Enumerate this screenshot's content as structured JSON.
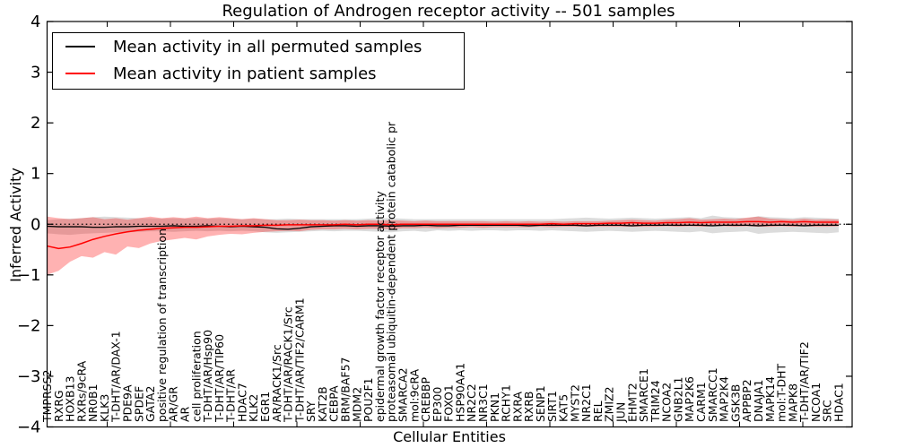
{
  "title": "Regulation of Androgen receptor activity -- 501 samples",
  "legend": {
    "items": [
      {
        "label": "Mean activity in all permuted samples",
        "color": "#000000"
      },
      {
        "label": "Mean activity in patient samples",
        "color": "#ff0000"
      }
    ],
    "position": "upper left"
  },
  "chart_data": {
    "type": "line",
    "title": "Regulation of Androgen receptor activity -- 501 samples",
    "xlabel": "Cellular Entities",
    "ylabel": "Inferred Activity",
    "ylim": [
      -4,
      4
    ],
    "yticks": [
      4,
      3,
      2,
      1,
      0,
      -1,
      -2,
      -3,
      -4
    ],
    "grid": false,
    "zero_line": true,
    "legend_position": "upper left",
    "colors": {
      "permuted_line": "#000000",
      "patient_line": "#ff0000",
      "permuted_band": "rgba(128,128,128,0.28)",
      "patient_band": "rgba(255,0,0,0.30)"
    },
    "categories": [
      "TMPRSS2",
      "RXRG",
      "HOXB13",
      "RXRs/9cRA",
      "NR0B1",
      "KLK3",
      "T-DHT/AR/DAX-1",
      "PDE9A",
      "SPDEF",
      "GATA2",
      "positive regulation of transcription",
      "AR/GR",
      "AR",
      "cell proliferation",
      "T-DHT/AR/Hsp90",
      "T-DHT/AR/TIP60",
      "T-DHT/AR",
      "HDAC7",
      "KLK2",
      "EGR1",
      "AR/RACK1/Src",
      "T-DHT/AR/RACK1/Src",
      "T-DHT/AR/TIF2/CARM1",
      "SRY",
      "KAT2B",
      "CEBPA",
      "BRM/BAF57",
      "MDM2",
      "POU2F1",
      "epidermal growth factor receptor activity",
      "proteasomal ubiquitin-dependent protein catabolic pr",
      "SMARCA2",
      "mol:9cRA",
      "CREBBP",
      "EP300",
      "FOXO1",
      "HSP90AA1",
      "NR2C2",
      "NR3C1",
      "PKN1",
      "RCHY1",
      "RXRA",
      "RXRB",
      "SENP1",
      "SIRT1",
      "KAT5",
      "MYST2",
      "NR2C1",
      "REL",
      "ZMIZ2",
      "JUN",
      "EHMT2",
      "SMARCE1",
      "TRIM24",
      "NCOA2",
      "GNB2L1",
      "MAP2K6",
      "CARM1",
      "SMARCC1",
      "MAP2K4",
      "GSK3B",
      "APPBP2",
      "DNAJA1",
      "MAPK14",
      "mol:T-DHT",
      "MAPK8",
      "T-DHT/AR/TIF2",
      "NCOA1",
      "SRC",
      "HDAC1"
    ],
    "series": [
      {
        "name": "Mean activity in all permuted samples",
        "color": "#000000",
        "values": [
          -0.04,
          -0.05,
          -0.05,
          -0.05,
          -0.06,
          -0.06,
          -0.05,
          -0.05,
          -0.04,
          -0.04,
          -0.04,
          -0.03,
          -0.04,
          -0.04,
          -0.03,
          -0.04,
          -0.05,
          -0.04,
          -0.05,
          -0.06,
          -0.09,
          -0.1,
          -0.08,
          -0.05,
          -0.04,
          -0.03,
          -0.03,
          -0.04,
          -0.03,
          -0.03,
          -0.04,
          -0.03,
          -0.03,
          -0.02,
          -0.03,
          -0.03,
          -0.02,
          -0.02,
          -0.02,
          -0.02,
          -0.02,
          -0.02,
          -0.03,
          -0.02,
          -0.02,
          -0.02,
          -0.02,
          -0.03,
          -0.02,
          -0.02,
          -0.02,
          -0.03,
          -0.02,
          -0.02,
          -0.02,
          -0.02,
          -0.02,
          -0.02,
          -0.03,
          -0.02,
          -0.02,
          -0.02,
          -0.03,
          -0.02,
          -0.02,
          -0.02,
          -0.03,
          -0.02,
          -0.02,
          -0.02
        ]
      },
      {
        "name": "Mean activity in patient samples",
        "color": "#ff0000",
        "values": [
          -0.43,
          -0.48,
          -0.45,
          -0.38,
          -0.3,
          -0.24,
          -0.19,
          -0.15,
          -0.12,
          -0.1,
          -0.08,
          -0.07,
          -0.06,
          -0.06,
          -0.05,
          -0.04,
          -0.04,
          -0.03,
          -0.03,
          -0.02,
          -0.02,
          -0.01,
          -0.01,
          -0.01,
          -0.01,
          -0.01,
          0.0,
          -0.01,
          0.0,
          0.0,
          -0.01,
          0.0,
          0.0,
          0.0,
          0.0,
          0.0,
          0.0,
          0.0,
          0.0,
          0.0,
          0.0,
          0.0,
          0.0,
          0.0,
          0.01,
          0.0,
          0.01,
          0.01,
          0.01,
          0.02,
          0.02,
          0.03,
          0.02,
          0.02,
          0.03,
          0.03,
          0.04,
          0.03,
          0.04,
          0.04,
          0.04,
          0.05,
          0.05,
          0.04,
          0.05,
          0.04,
          0.05,
          0.04,
          0.04,
          0.04
        ]
      }
    ],
    "bands": [
      {
        "name": "permuted-range",
        "color": "rgba(128,128,128,0.28)",
        "lower": [
          -0.18,
          -0.2,
          -0.21,
          -0.19,
          -0.18,
          -0.17,
          -0.16,
          -0.16,
          -0.15,
          -0.14,
          -0.14,
          -0.15,
          -0.14,
          -0.13,
          -0.14,
          -0.13,
          -0.14,
          -0.13,
          -0.14,
          -0.16,
          -0.17,
          -0.16,
          -0.15,
          -0.14,
          -0.13,
          -0.14,
          -0.13,
          -0.13,
          -0.14,
          -0.15,
          -0.16,
          -0.14,
          -0.13,
          -0.15,
          -0.12,
          -0.13,
          -0.12,
          -0.13,
          -0.12,
          -0.12,
          -0.13,
          -0.12,
          -0.12,
          -0.13,
          -0.12,
          -0.13,
          -0.14,
          -0.15,
          -0.14,
          -0.13,
          -0.14,
          -0.15,
          -0.14,
          -0.13,
          -0.14,
          -0.15,
          -0.16,
          -0.14,
          -0.18,
          -0.16,
          -0.15,
          -0.14,
          -0.19,
          -0.17,
          -0.16,
          -0.15,
          -0.16,
          -0.17,
          -0.18,
          -0.16
        ],
        "upper": [
          0.08,
          0.1,
          0.11,
          0.12,
          0.14,
          0.15,
          0.14,
          0.13,
          0.12,
          0.12,
          0.11,
          0.12,
          0.11,
          0.12,
          0.11,
          0.12,
          0.11,
          0.1,
          0.11,
          0.1,
          0.1,
          0.11,
          0.1,
          0.1,
          0.1,
          0.1,
          0.1,
          0.1,
          0.11,
          0.12,
          0.12,
          0.11,
          0.1,
          0.1,
          0.1,
          0.1,
          0.1,
          0.1,
          0.1,
          0.1,
          0.1,
          0.1,
          0.1,
          0.1,
          0.1,
          0.11,
          0.12,
          0.13,
          0.12,
          0.11,
          0.12,
          0.13,
          0.12,
          0.11,
          0.12,
          0.13,
          0.14,
          0.12,
          0.17,
          0.14,
          0.13,
          0.12,
          0.16,
          0.14,
          0.13,
          0.12,
          0.14,
          0.13,
          0.12,
          0.11
        ]
      },
      {
        "name": "patient-range",
        "color": "rgba(255,0,0,0.30)",
        "lower": [
          -1.0,
          -0.92,
          -0.74,
          -0.63,
          -0.66,
          -0.55,
          -0.6,
          -0.44,
          -0.47,
          -0.38,
          -0.33,
          -0.3,
          -0.27,
          -0.3,
          -0.24,
          -0.21,
          -0.19,
          -0.2,
          -0.17,
          -0.15,
          -0.14,
          -0.13,
          -0.14,
          -0.11,
          -0.1,
          -0.1,
          -0.09,
          -0.1,
          -0.09,
          -0.09,
          -0.1,
          -0.08,
          -0.08,
          -0.07,
          -0.08,
          -0.07,
          -0.07,
          -0.06,
          -0.07,
          -0.06,
          -0.06,
          -0.06,
          -0.06,
          -0.05,
          -0.06,
          -0.05,
          -0.05,
          -0.05,
          -0.05,
          -0.05,
          -0.05,
          -0.05,
          -0.05,
          -0.05,
          -0.04,
          -0.05,
          -0.04,
          -0.05,
          -0.04,
          -0.04,
          -0.05,
          -0.04,
          -0.05,
          -0.05,
          -0.04,
          -0.05,
          -0.04,
          -0.05,
          -0.05,
          -0.04
        ],
        "upper": [
          0.15,
          0.12,
          0.1,
          0.12,
          0.14,
          0.1,
          0.12,
          0.09,
          0.12,
          0.15,
          0.12,
          0.14,
          0.12,
          0.15,
          0.12,
          0.14,
          0.12,
          0.1,
          0.12,
          0.1,
          0.08,
          0.08,
          0.09,
          0.08,
          0.08,
          0.07,
          0.08,
          0.07,
          0.08,
          0.07,
          0.08,
          0.07,
          0.06,
          0.07,
          0.06,
          0.06,
          0.06,
          0.06,
          0.06,
          0.05,
          0.06,
          0.05,
          0.06,
          0.05,
          0.06,
          0.05,
          0.06,
          0.06,
          0.06,
          0.07,
          0.08,
          0.09,
          0.08,
          0.07,
          0.09,
          0.1,
          0.12,
          0.09,
          0.1,
          0.11,
          0.1,
          0.13,
          0.15,
          0.11,
          0.1,
          0.09,
          0.11,
          0.09,
          0.1,
          0.09
        ]
      }
    ]
  }
}
